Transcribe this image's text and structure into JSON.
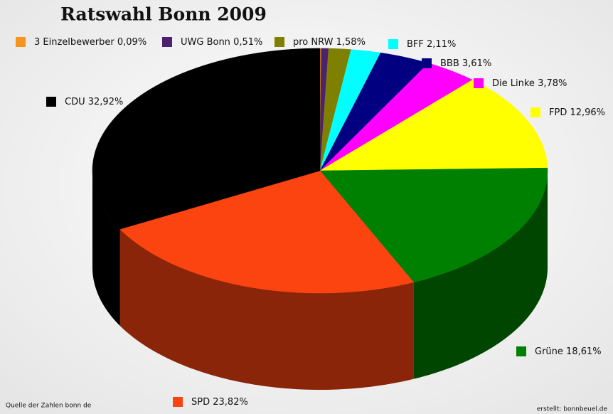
{
  "chart_data": {
    "type": "pie",
    "title": "Ratswahl Bonn 2009",
    "categories": [
      "3 Einzelbewerber",
      "UWG Bonn",
      "pro NRW",
      "BFF",
      "BBB",
      "Die Linke",
      "FPD",
      "Grüne",
      "SPD",
      "CDU"
    ],
    "values": [
      0.09,
      0.51,
      1.58,
      2.11,
      3.61,
      3.78,
      12.96,
      18.61,
      23.82,
      32.92
    ],
    "value_labels": [
      "0,09%",
      "0,51%",
      "1,58%",
      "2,11%",
      "3,61%",
      "3,78%",
      "12,96%",
      "18,61%",
      "23,82%",
      "32,92%"
    ],
    "colors": [
      "#f7941d",
      "#4b2270",
      "#808000",
      "#00ffff",
      "#000080",
      "#ff00ff",
      "#ffff00",
      "#008000",
      "#fc4410",
      "#000000"
    ],
    "source": "Quelle der Zahlen  bonn de",
    "credit": "erstellt: bonnbeuel.de"
  }
}
